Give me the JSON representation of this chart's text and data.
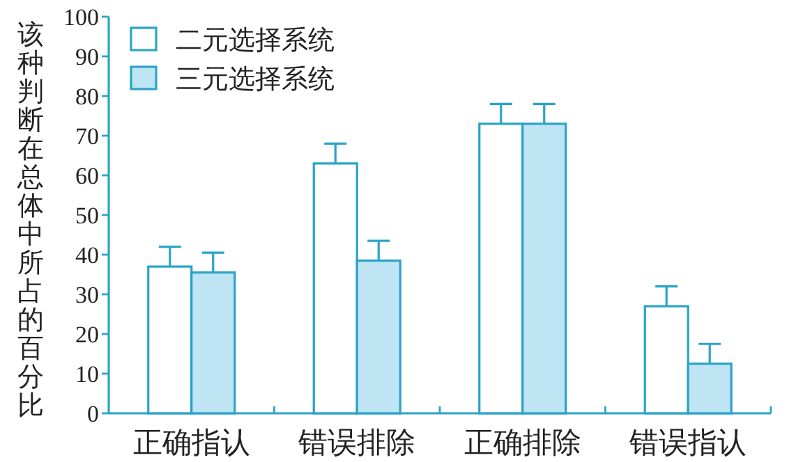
{
  "chart_data": {
    "type": "bar",
    "ylabel": "该种判断在总体中所占的百分比",
    "categories": [
      "正确指认",
      "错误排除",
      "正确排除",
      "错误指认"
    ],
    "series": [
      {
        "name": "二元选择系统",
        "color": "#ffffff",
        "values": [
          37,
          63,
          73,
          27
        ],
        "errors": [
          5,
          5,
          5,
          5
        ]
      },
      {
        "name": "三元选择系统",
        "color": "#bfe4f3",
        "values": [
          35.5,
          38.5,
          73,
          12.5
        ],
        "errors": [
          5,
          5,
          5,
          5
        ]
      }
    ],
    "ylim": [
      0,
      100
    ],
    "yticks": [
      0,
      10,
      20,
      30,
      40,
      50,
      60,
      70,
      80,
      90,
      100
    ],
    "grid": false,
    "legend": "top left"
  }
}
